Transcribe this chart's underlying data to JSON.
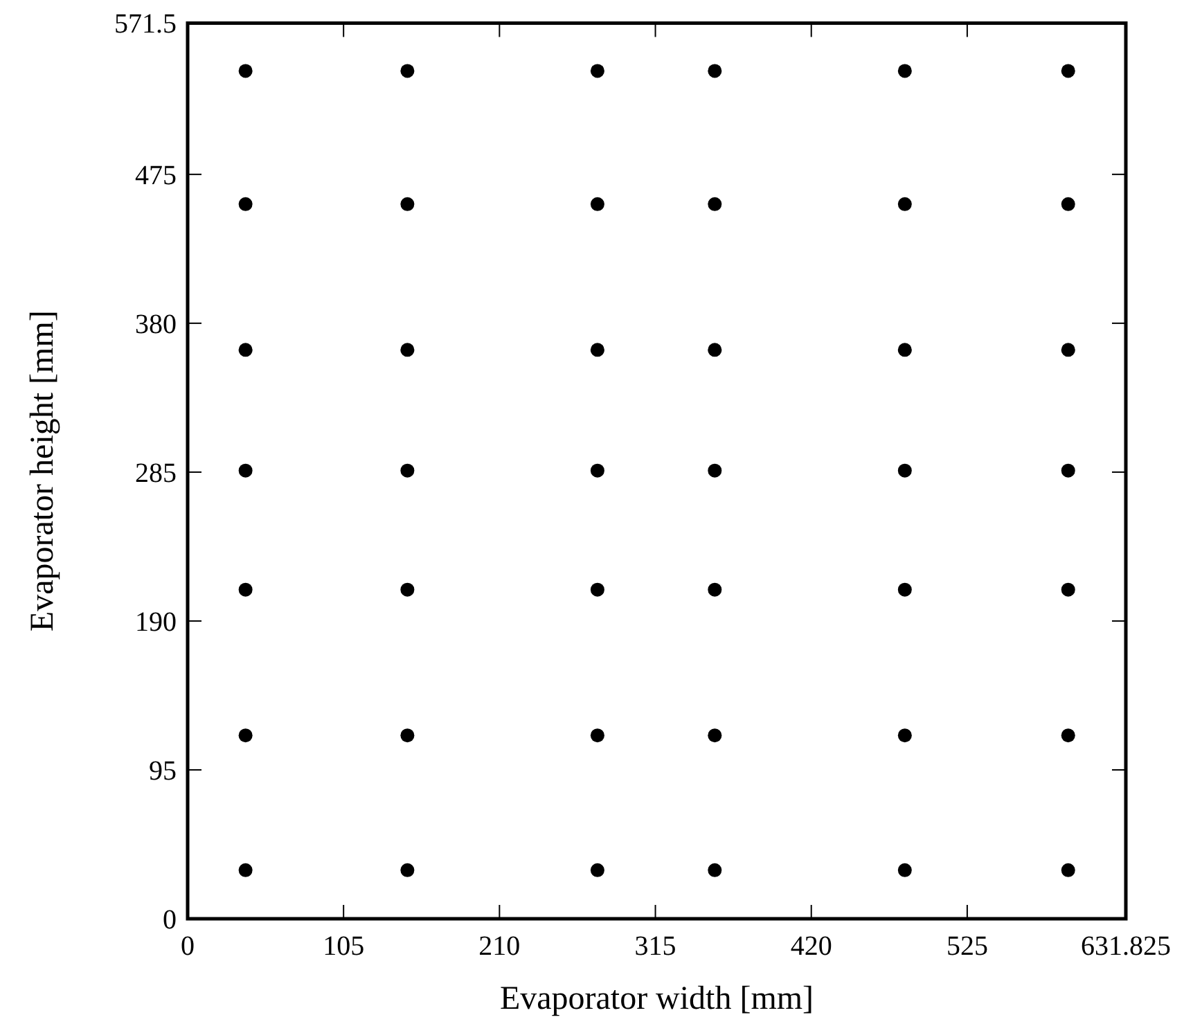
{
  "chart_data": {
    "type": "scatter",
    "xlabel": "Evaporator width [mm]",
    "ylabel": "Evaporator height [mm]",
    "x": [
      39,
      39,
      39,
      39,
      39,
      39,
      39,
      148,
      148,
      148,
      148,
      148,
      148,
      148,
      276,
      276,
      276,
      276,
      276,
      276,
      276,
      355,
      355,
      355,
      355,
      355,
      355,
      355,
      483,
      483,
      483,
      483,
      483,
      483,
      483,
      593,
      593,
      593,
      593,
      593,
      593,
      593
    ],
    "series": [
      {
        "color": "#000000",
        "values": [
          31,
          117,
          210,
          286,
          363,
          456,
          541,
          31,
          117,
          210,
          286,
          363,
          456,
          541,
          31,
          117,
          210,
          286,
          363,
          456,
          541,
          31,
          117,
          210,
          286,
          363,
          456,
          541,
          31,
          117,
          210,
          286,
          363,
          456,
          541,
          31,
          117,
          210,
          286,
          363,
          456,
          541
        ]
      }
    ],
    "xlim": [
      0,
      631.825
    ],
    "xticks": [
      0,
      105,
      210,
      315,
      420,
      525,
      631.825
    ],
    "ylim": [
      0,
      571.5
    ],
    "yticks": [
      0,
      95,
      190,
      285,
      380,
      475,
      571.5
    ],
    "marker": "circle",
    "grid": false
  }
}
